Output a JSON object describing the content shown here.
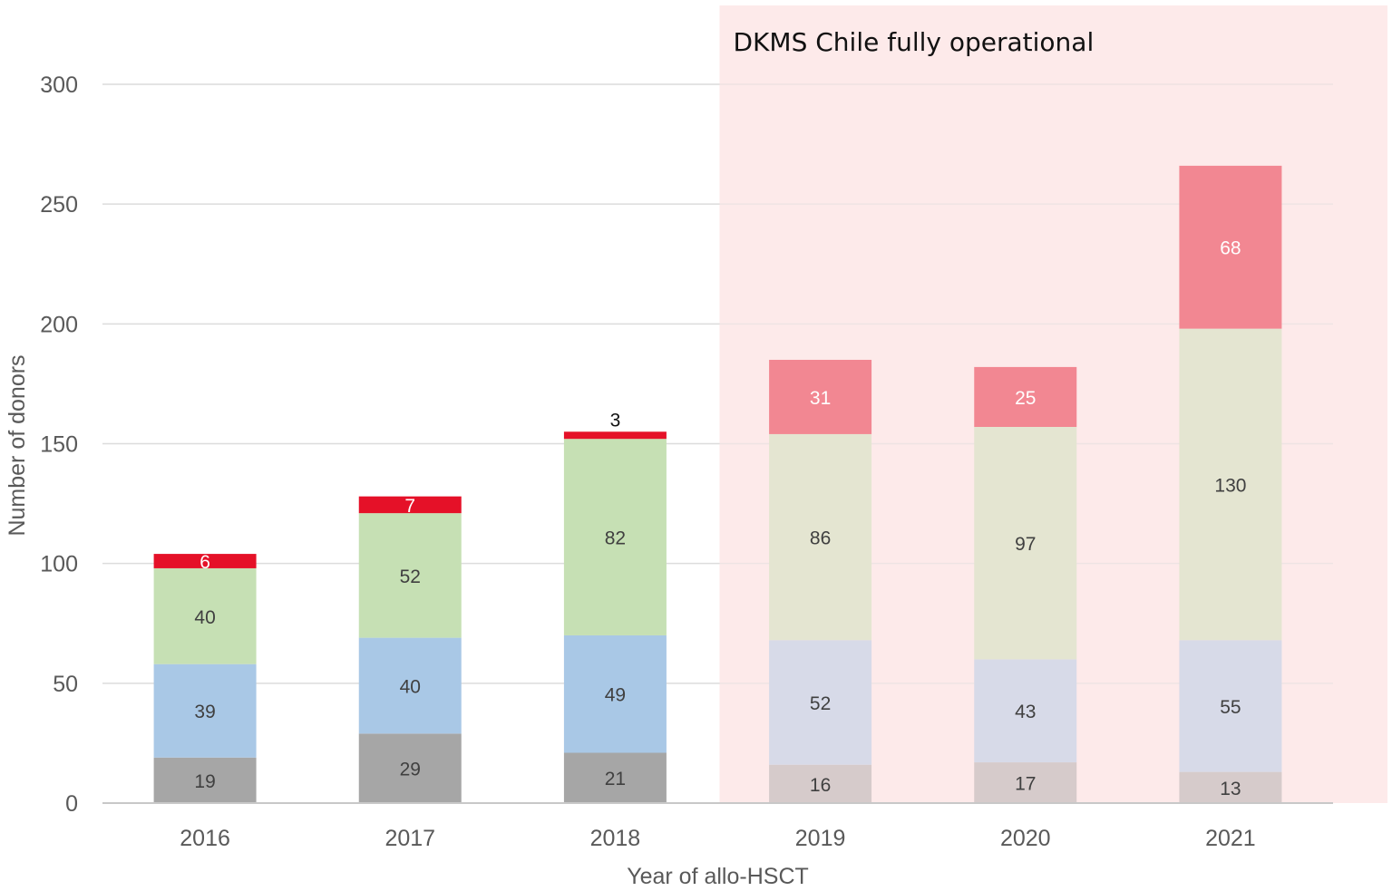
{
  "chart_data": {
    "type": "bar",
    "stacked": true,
    "title": "",
    "xlabel": "Year of allo-HSCT",
    "ylabel": "Number of donors",
    "ylim": [
      0,
      300
    ],
    "yticks": [
      0,
      50,
      100,
      150,
      200,
      250,
      300
    ],
    "grid": true,
    "categories": [
      "2016",
      "2017",
      "2018",
      "2019",
      "2020",
      "2021"
    ],
    "series": [
      {
        "name": "Segment 1",
        "color": "#a6a6a6",
        "label_color": "#404040",
        "values": [
          19,
          29,
          21,
          16,
          17,
          13
        ]
      },
      {
        "name": "Segment 2",
        "color": "#a9c8e6",
        "label_color": "#404040",
        "values": [
          39,
          40,
          49,
          52,
          43,
          55
        ]
      },
      {
        "name": "Segment 3",
        "color": "#c6e0b4",
        "label_color": "#404040",
        "values": [
          40,
          52,
          82,
          86,
          97,
          130
        ]
      },
      {
        "name": "Segment 4",
        "color": "#e51128",
        "label_color": "#ffffff",
        "values": [
          6,
          7,
          3,
          31,
          25,
          68
        ]
      }
    ],
    "highlight_region": {
      "label": "DKMS Chile fully operational",
      "from_category": "2019",
      "color": "#fdeaea",
      "opacity": 0.55
    }
  }
}
